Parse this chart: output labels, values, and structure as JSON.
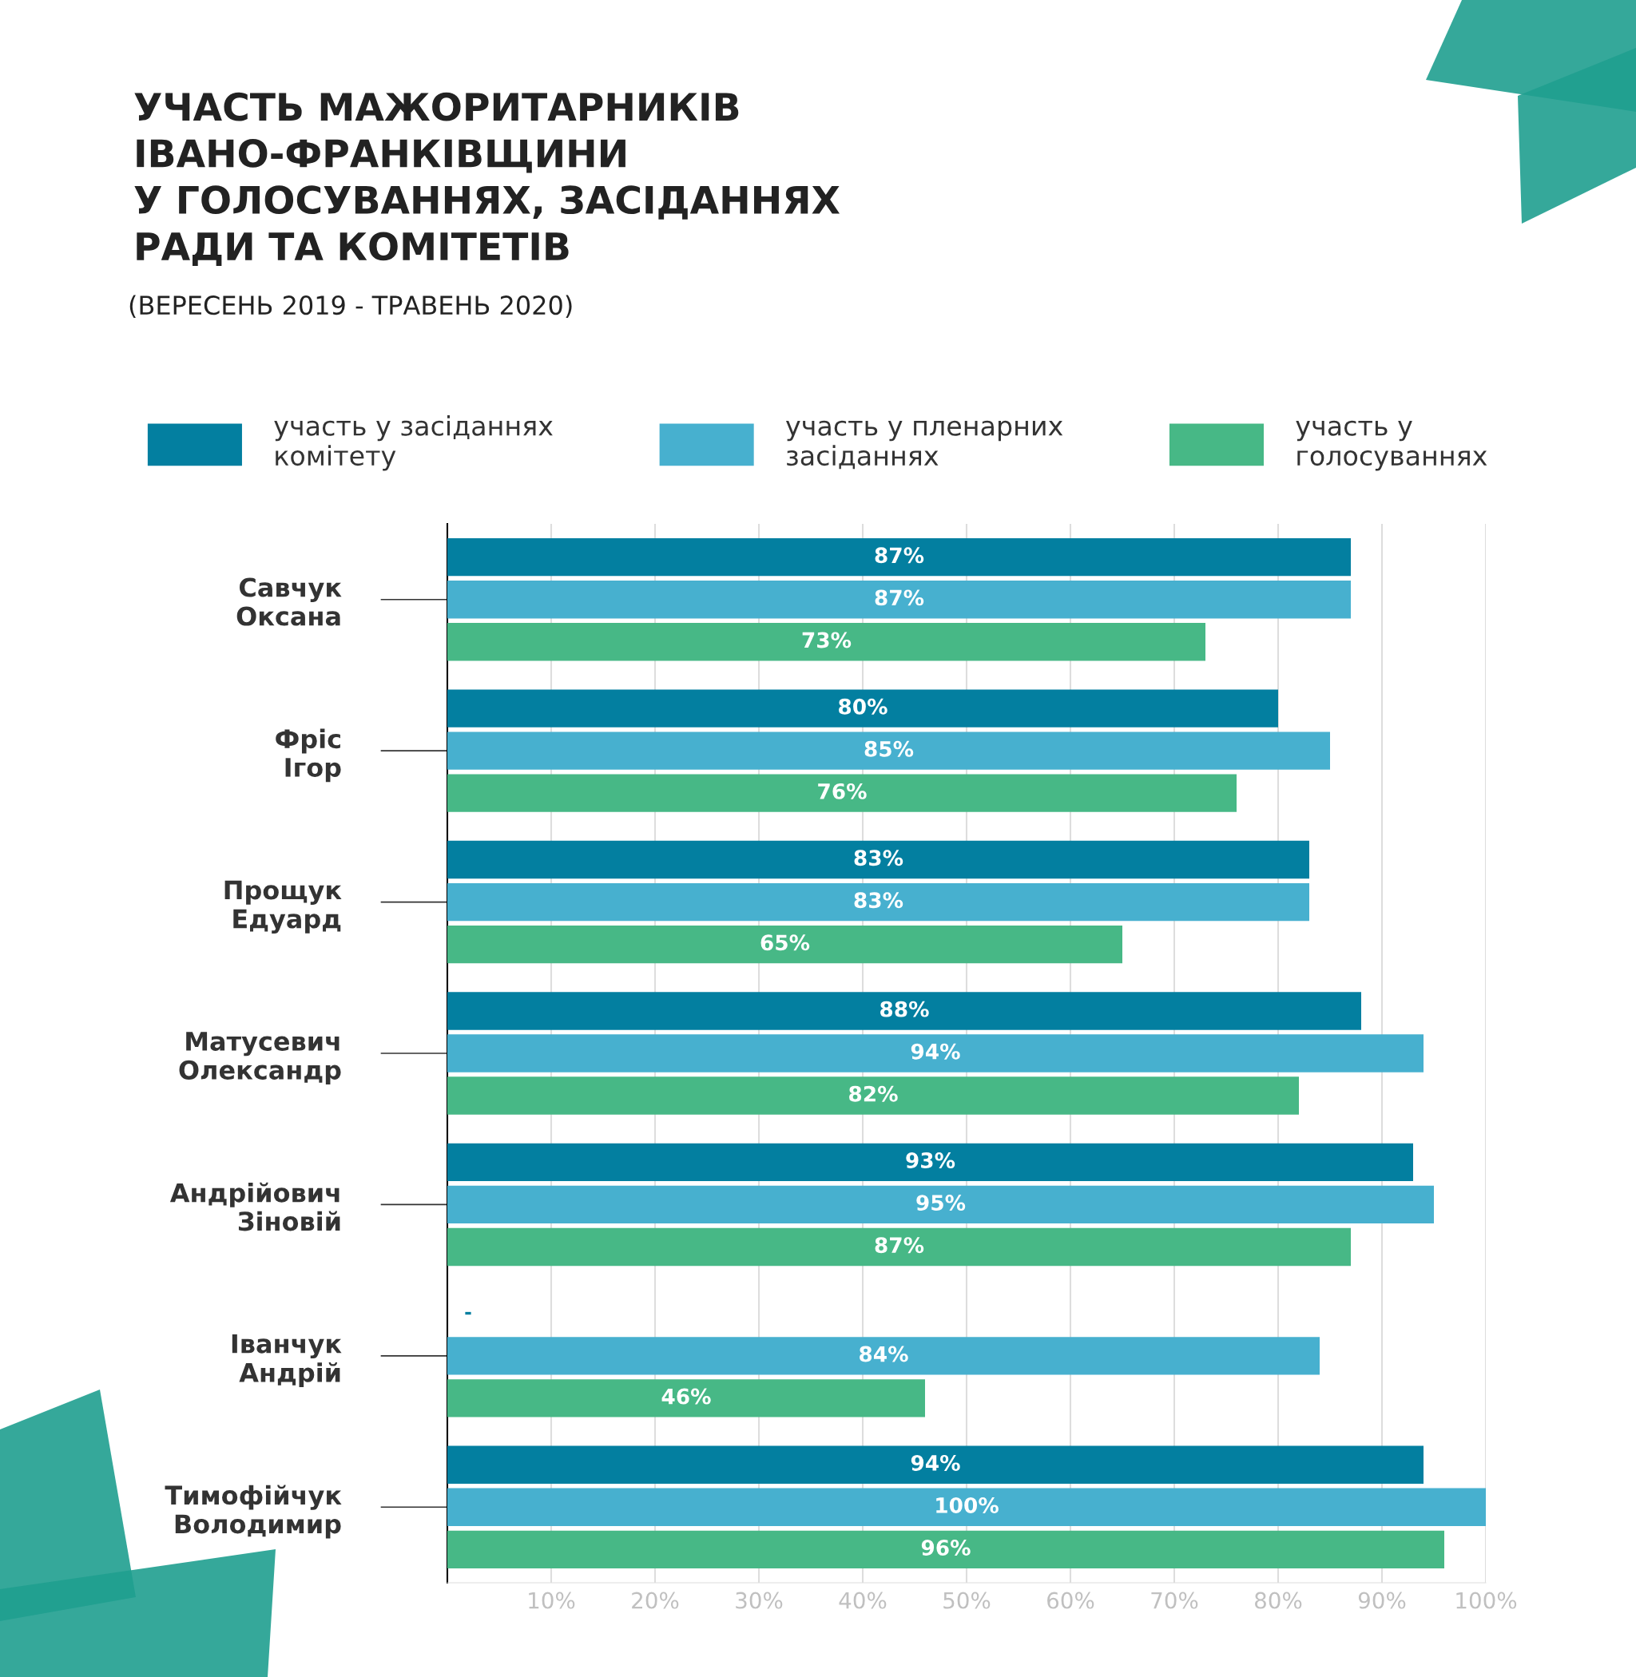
{
  "chart_data": {
    "type": "bar",
    "orientation": "horizontal",
    "title": "УЧАСТЬ МАЖОРИТАРНИКІВ\nІВАНО-ФРАНКІВЩИНИ\nУ ГОЛОСУВАННЯХ, ЗАСІДАННЯХ\nРАДИ ТА КОМІТЕТІВ",
    "subtitle": "(ВЕРЕСЕНЬ 2019 - ТРАВЕНЬ 2020)",
    "categories": [
      "Савчук\nОксана",
      "Фріс\nІгор",
      "Прощук\nЕдуард",
      "Матусевич\nОлександр",
      "Андрійович\nЗіновій",
      "Іванчук\nАндрій",
      "Тимофійчук\nВолодимир"
    ],
    "series": [
      {
        "name": "участь у засіданнях\nкомітету",
        "color": "#037fa0",
        "values": [
          87,
          80,
          83,
          88,
          93,
          null,
          94
        ],
        "value_labels": [
          "87%",
          "80%",
          "83%",
          "88%",
          "93%",
          "-",
          "94%"
        ]
      },
      {
        "name": "участь у пленарних\nзасіданнях",
        "color": "#47b0cf",
        "values": [
          87,
          85,
          83,
          94,
          95,
          84,
          100
        ],
        "value_labels": [
          "87%",
          "85%",
          "83%",
          "94%",
          "95%",
          "84%",
          "100%"
        ]
      },
      {
        "name": "участь у\nголосуваннях",
        "color": "#47b886",
        "values": [
          73,
          76,
          65,
          82,
          87,
          46,
          96
        ],
        "value_labels": [
          "73%",
          "76%",
          "65%",
          "82%",
          "87%",
          "46%",
          "96%"
        ]
      }
    ],
    "xlim": [
      0,
      100
    ],
    "xticks": [
      {
        "value": 10,
        "label": "10%"
      },
      {
        "value": 20,
        "label": "20%"
      },
      {
        "value": 30,
        "label": "30%"
      },
      {
        "value": 40,
        "label": "40%"
      },
      {
        "value": 50,
        "label": "50%"
      },
      {
        "value": 60,
        "label": "60%"
      },
      {
        "value": 70,
        "label": "70%"
      },
      {
        "value": 80,
        "label": "80%"
      },
      {
        "value": 90,
        "label": "90%"
      },
      {
        "value": 100,
        "label": "100%"
      }
    ],
    "grid": "x",
    "legend": "top"
  }
}
